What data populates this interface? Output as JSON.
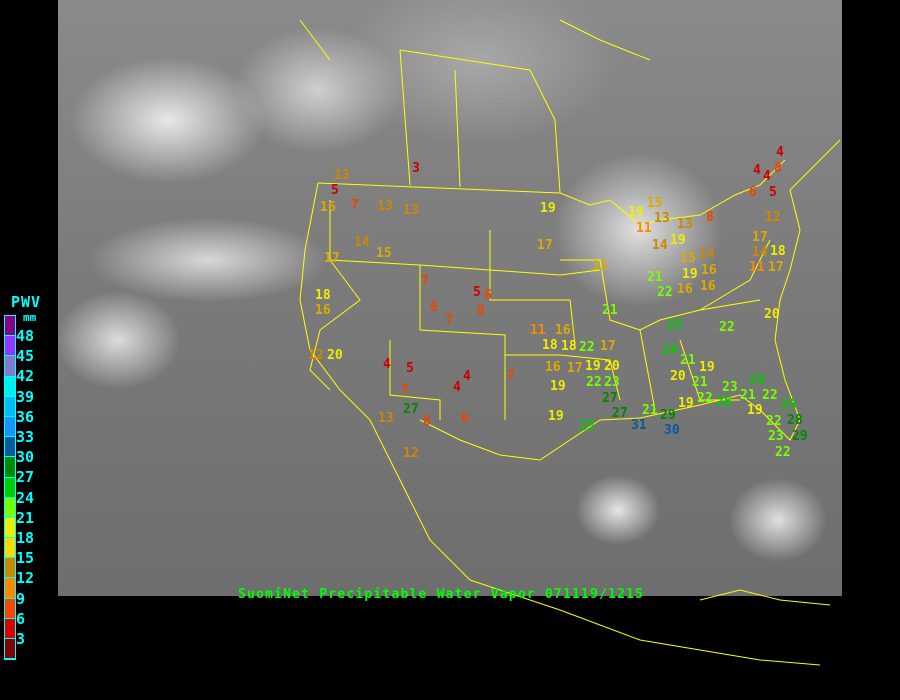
{
  "map": {
    "caption": "SuomiNet Precipitable Water Vapor 071119/1215",
    "border_color": "#ffff00"
  },
  "legend": {
    "title": "PWV",
    "unit": "mm",
    "labels": [
      "48",
      "45",
      "42",
      "39",
      "36",
      "33",
      "30",
      "27",
      "24",
      "21",
      "18",
      "15",
      "12",
      "9",
      "6",
      "3"
    ],
    "colors": [
      "#8b008b",
      "#9933ff",
      "#8877cc",
      "#00eeee",
      "#00bbee",
      "#1e90ff",
      "#0a5a9a",
      "#008800",
      "#00cc00",
      "#77ff00",
      "#eeee00",
      "#ffd700",
      "#cc8800",
      "#ff8800",
      "#ff4400",
      "#dd0000",
      "#880000"
    ]
  },
  "stations": [
    3,
    13,
    5,
    16,
    7,
    13,
    13,
    14,
    15,
    17,
    19,
    17,
    15,
    18,
    16,
    7,
    6,
    7,
    5,
    6,
    8,
    12,
    20,
    4,
    5,
    4,
    4,
    7,
    7,
    27,
    13,
    6,
    12,
    8,
    11,
    16,
    18,
    18,
    22,
    17,
    16,
    17,
    19,
    20,
    22,
    19,
    23,
    27,
    19,
    25,
    27,
    31,
    21,
    29,
    30,
    25,
    24,
    21,
    20,
    19,
    21,
    19,
    22,
    26,
    22,
    20,
    21,
    21,
    22,
    4,
    8,
    4,
    4,
    6,
    5,
    15,
    13,
    8,
    12,
    11,
    19,
    19,
    13,
    14,
    15,
    17,
    14,
    11,
    17,
    18,
    19,
    16,
    16,
    16,
    14,
    24,
    21,
    19,
    22,
    25,
    22,
    28,
    23,
    29,
    22,
    23
  ]
}
